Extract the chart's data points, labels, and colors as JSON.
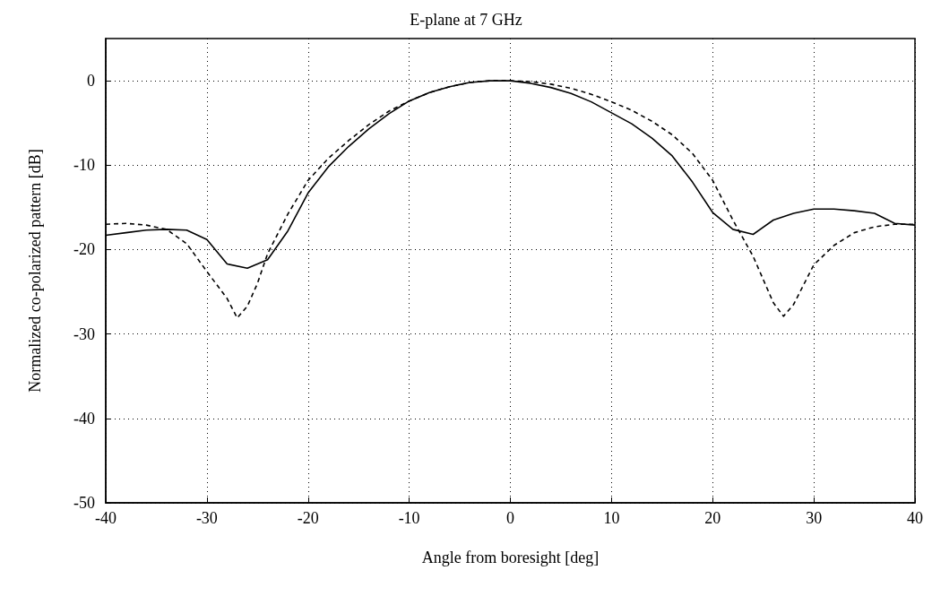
{
  "chart_data": {
    "type": "line",
    "title": "E-plane at 7 GHz",
    "xlabel": "Angle from boresight [deg]",
    "ylabel": "Normalized co-polarized pattern [dB]",
    "xlim": [
      -40,
      40
    ],
    "xticks": [
      -40,
      -30,
      -20,
      -10,
      0,
      10,
      20,
      30,
      40
    ],
    "ylim": [
      -50,
      5
    ],
    "yticks": [
      -50,
      -40,
      -30,
      -20,
      -10,
      0
    ],
    "grid": true,
    "marker": "none",
    "series": [
      {
        "color": "#000000",
        "line_style": "solid",
        "x": [
          -40,
          -38,
          -36,
          -34,
          -32,
          -30,
          -28,
          -26,
          -24,
          -22,
          -20,
          -18,
          -16,
          -14,
          -12,
          -10,
          -8,
          -6,
          -4,
          -2,
          0,
          2,
          4,
          6,
          8,
          10,
          12,
          14,
          16,
          18,
          20,
          22,
          24,
          26,
          28,
          30,
          32,
          34,
          36,
          38,
          40
        ],
        "values": [
          -18.3,
          -18,
          -17.7,
          -17.6,
          -17.7,
          -18.8,
          -21.7,
          -22.2,
          -21.2,
          -17.8,
          -13.3,
          -10.2,
          -7.8,
          -5.7,
          -3.9,
          -2.4,
          -1.4,
          -0.7,
          -0.2,
          0,
          0,
          -0.3,
          -0.8,
          -1.5,
          -2.5,
          -3.8,
          -5.1,
          -6.8,
          -8.9,
          -12,
          -15.6,
          -17.6,
          -18.2,
          -16.5,
          -15.7,
          -15.2,
          -15.2,
          -15.4,
          -15.7,
          -16.9,
          -17.1
        ]
      },
      {
        "color": "#000000",
        "line_style": "dashed",
        "x": [
          -40,
          -38,
          -36,
          -34,
          -32,
          -30,
          -28,
          -27,
          -26,
          -25,
          -24,
          -22,
          -20,
          -18,
          -16,
          -14,
          -12,
          -10,
          -8,
          -6,
          -4,
          -2,
          0,
          2,
          4,
          6,
          8,
          10,
          12,
          14,
          16,
          18,
          20,
          22,
          24,
          26,
          27,
          28,
          30,
          32,
          34,
          36,
          38,
          40
        ],
        "values": [
          -17,
          -16.9,
          -17.1,
          -17.6,
          -19.3,
          -22.6,
          -25.8,
          -28.1,
          -26.7,
          -24,
          -20.5,
          -15.8,
          -11.8,
          -9.2,
          -7.1,
          -5.2,
          -3.6,
          -2.4,
          -1.4,
          -0.7,
          -0.2,
          0,
          0,
          -0.1,
          -0.4,
          -0.9,
          -1.6,
          -2.5,
          -3.5,
          -4.8,
          -6.4,
          -8.6,
          -11.8,
          -16.5,
          -20.8,
          -26.3,
          -27.9,
          -26.5,
          -21.8,
          -19.5,
          -18,
          -17.3,
          -17,
          -17
        ]
      }
    ]
  }
}
